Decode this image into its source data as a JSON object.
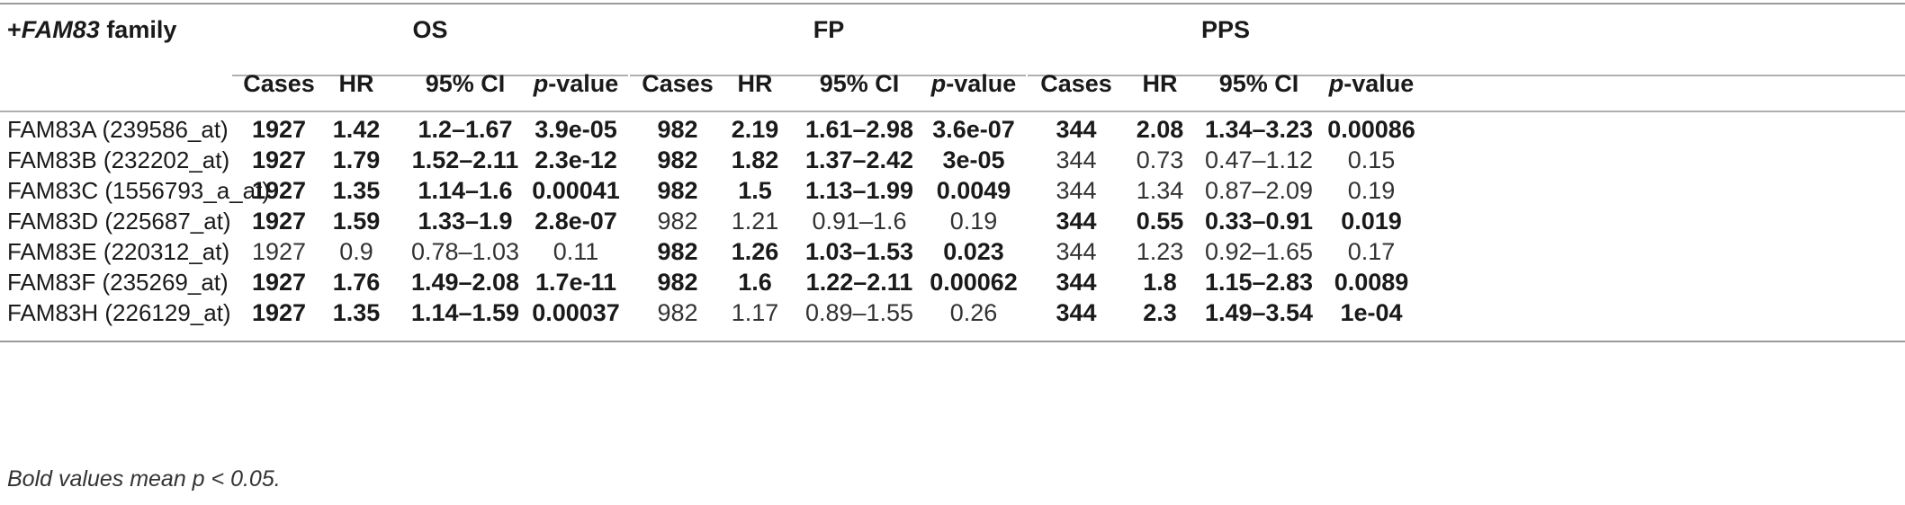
{
  "table": {
    "corner_prefix": "+",
    "corner_gene": "FAM83",
    "corner_suffix": " family",
    "groups": [
      "OS",
      "FP",
      "PPS"
    ],
    "subheaders": {
      "cases": "Cases",
      "hr": "HR",
      "ci": "95% CI",
      "p_italic": "p",
      "p_rest": "-value"
    },
    "rows": [
      {
        "label": "FAM83A (239586_at)",
        "os": {
          "cases": "1927",
          "hr": "1.42",
          "ci": "1.2–1.67",
          "p": "3.9e-05",
          "bold": true
        },
        "fp": {
          "cases": "982",
          "hr": "2.19",
          "ci": "1.61–2.98",
          "p": "3.6e-07",
          "bold": true
        },
        "pps": {
          "cases": "344",
          "hr": "2.08",
          "ci": "1.34–3.23",
          "p": "0.00086",
          "bold": true
        }
      },
      {
        "label": "FAM83B (232202_at)",
        "os": {
          "cases": "1927",
          "hr": "1.79",
          "ci": "1.52–2.11",
          "p": "2.3e-12",
          "bold": true
        },
        "fp": {
          "cases": "982",
          "hr": "1.82",
          "ci": "1.37–2.42",
          "p": "3e-05",
          "bold": true
        },
        "pps": {
          "cases": "344",
          "hr": "0.73",
          "ci": "0.47–1.12",
          "p": "0.15",
          "bold": false
        }
      },
      {
        "label": "FAM83C (1556793_a_at)",
        "os": {
          "cases": "1927",
          "hr": "1.35",
          "ci": "1.14–1.6",
          "p": "0.00041",
          "bold": true
        },
        "fp": {
          "cases": "982",
          "hr": "1.5",
          "ci": "1.13–1.99",
          "p": "0.0049",
          "bold": true
        },
        "pps": {
          "cases": "344",
          "hr": "1.34",
          "ci": "0.87–2.09",
          "p": "0.19",
          "bold": false
        }
      },
      {
        "label": "FAM83D (225687_at)",
        "os": {
          "cases": "1927",
          "hr": "1.59",
          "ci": "1.33–1.9",
          "p": "2.8e-07",
          "bold": true
        },
        "fp": {
          "cases": "982",
          "hr": "1.21",
          "ci": "0.91–1.6",
          "p": "0.19",
          "bold": false
        },
        "pps": {
          "cases": "344",
          "hr": "0.55",
          "ci": "0.33–0.91",
          "p": "0.019",
          "bold": true
        }
      },
      {
        "label": "FAM83E (220312_at)",
        "os": {
          "cases": "1927",
          "hr": "0.9",
          "ci": "0.78–1.03",
          "p": "0.11",
          "bold": false
        },
        "fp": {
          "cases": "982",
          "hr": "1.26",
          "ci": "1.03–1.53",
          "p": "0.023",
          "bold": true
        },
        "pps": {
          "cases": "344",
          "hr": "1.23",
          "ci": "0.92–1.65",
          "p": "0.17",
          "bold": false
        }
      },
      {
        "label": "FAM83F (235269_at)",
        "os": {
          "cases": "1927",
          "hr": "1.76",
          "ci": "1.49–2.08",
          "p": "1.7e-11",
          "bold": true
        },
        "fp": {
          "cases": "982",
          "hr": "1.6",
          "ci": "1.22–2.11",
          "p": "0.00062",
          "bold": true
        },
        "pps": {
          "cases": "344",
          "hr": "1.8",
          "ci": "1.15–2.83",
          "p": "0.0089",
          "bold": true
        }
      },
      {
        "label": "FAM83H (226129_at)",
        "os": {
          "cases": "1927",
          "hr": "1.35",
          "ci": "1.14–1.59",
          "p": "0.00037",
          "bold": true
        },
        "fp": {
          "cases": "982",
          "hr": "1.17",
          "ci": "0.89–1.55",
          "p": "0.26",
          "bold": false
        },
        "pps": {
          "cases": "344",
          "hr": "2.3",
          "ci": "1.49–3.54",
          "p": "1e-04",
          "bold": true
        }
      }
    ],
    "footnote": "Bold values mean p < 0.05."
  }
}
